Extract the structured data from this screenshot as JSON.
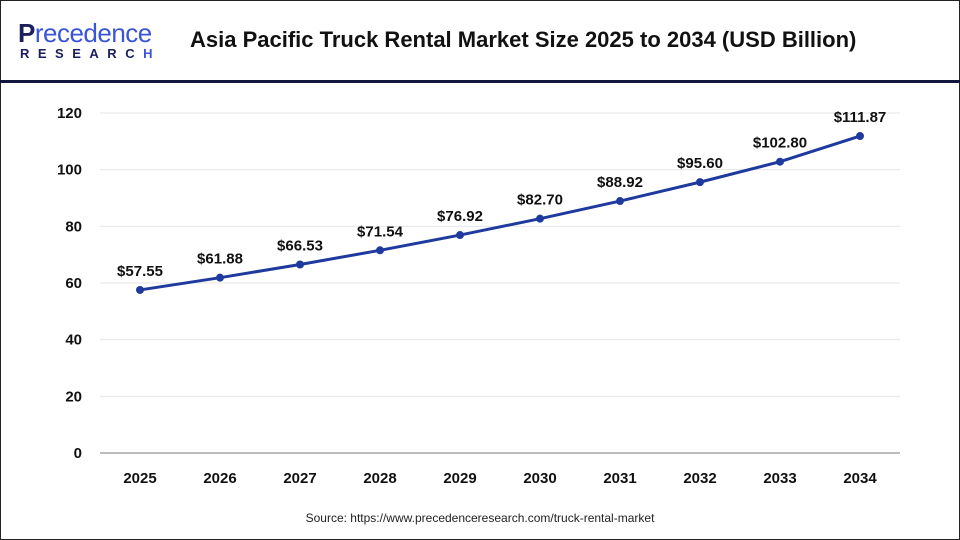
{
  "header": {
    "logo_text": "Precedence",
    "logo_sub": "RESEARCH",
    "title": "Asia Pacific Truck Rental Market Size 2025 to 2034 (USD Billion)"
  },
  "chart_data": {
    "type": "line",
    "title": "Asia Pacific Truck Rental Market Size 2025 to 2034 (USD Billion)",
    "categories": [
      "2025",
      "2026",
      "2027",
      "2028",
      "2029",
      "2030",
      "2031",
      "2032",
      "2033",
      "2034"
    ],
    "values": [
      57.55,
      61.88,
      66.53,
      71.54,
      76.92,
      82.7,
      88.92,
      95.6,
      102.8,
      111.87
    ],
    "data_labels": [
      "$57.55",
      "$61.88",
      "$66.53",
      "$71.54",
      "$76.92",
      "$82.70",
      "$88.92",
      "$95.60",
      "$102.80",
      "$111.87"
    ],
    "yticks": [
      "0",
      "20",
      "40",
      "60",
      "80",
      "100",
      "120"
    ],
    "ylim": [
      0,
      120
    ],
    "grid": true,
    "line_color": "#1f3a9e",
    "xlabel": "",
    "ylabel": ""
  },
  "footer": {
    "source": "Source: https://www.precedenceresearch.com/truck-rental-market"
  }
}
